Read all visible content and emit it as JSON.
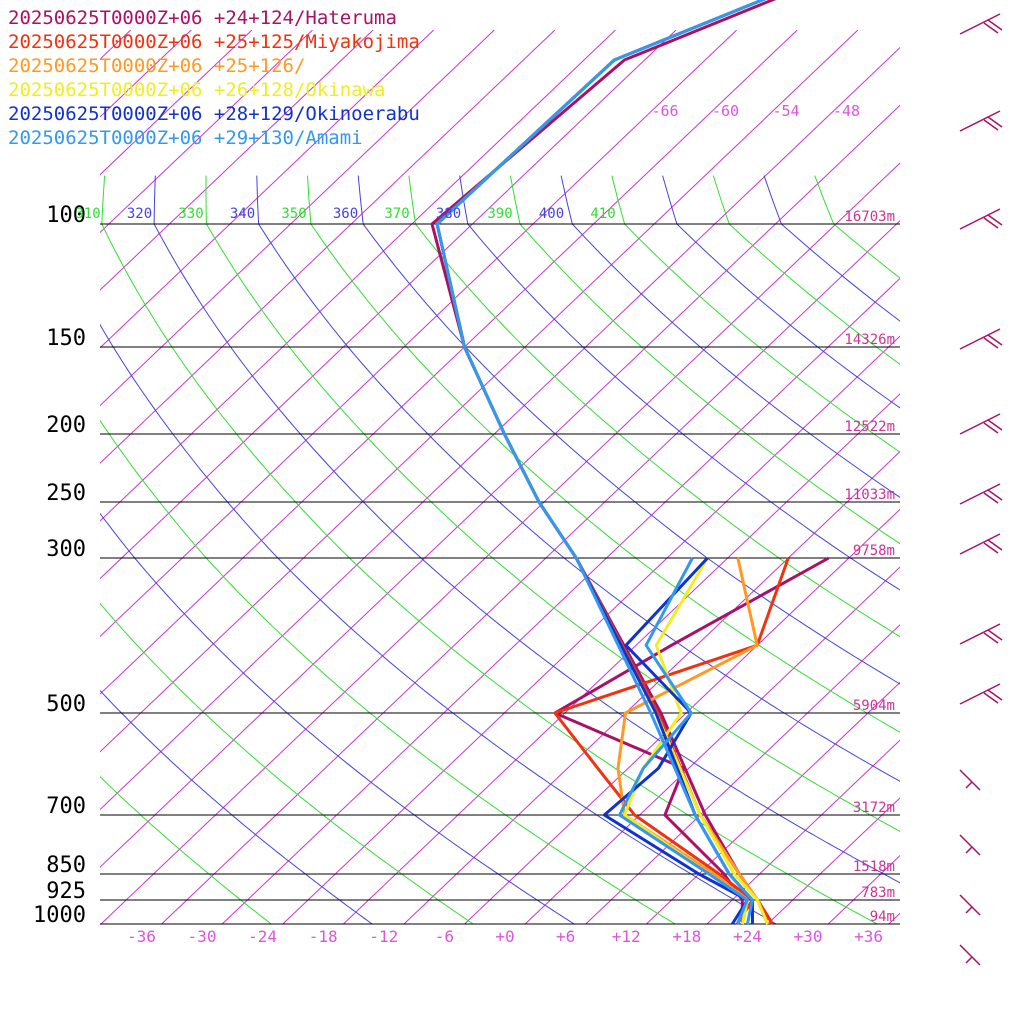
{
  "chart_data": {
    "type": "line",
    "title": "",
    "xlabel": "",
    "ylabel": "",
    "pressure_levels": [
      100,
      150,
      200,
      250,
      300,
      500,
      700,
      850,
      925,
      1000
    ],
    "pressure_labels": [
      "100",
      "150",
      "200",
      "250",
      "300",
      "500",
      "700",
      "850",
      "925",
      "1000"
    ],
    "height_labels": [
      "16703m",
      "14326m",
      "12522m",
      "11033m",
      "9758m",
      "5904m",
      "3172m",
      "1518m",
      "783m",
      "94m"
    ],
    "temperature_ticks": [
      -36,
      -30,
      -24,
      -18,
      -12,
      -6,
      0,
      6,
      12,
      18,
      24,
      30,
      36
    ],
    "temperature_tick_labels": [
      "-36",
      "-30",
      "-24",
      "-18",
      "-12",
      "-6",
      "+0",
      "+6",
      "+12",
      "+18",
      "+24",
      "+30",
      "+36"
    ],
    "upper_isotherm_labels": [
      "-66",
      "-60",
      "-54",
      "-48"
    ],
    "theta_labels": [
      {
        "text": "310",
        "color": "#33dd33"
      },
      {
        "text": "320",
        "color": "#4444dd"
      },
      {
        "text": "330",
        "color": "#33dd33"
      },
      {
        "text": "340",
        "color": "#4444dd"
      },
      {
        "text": "350",
        "color": "#33dd33"
      },
      {
        "text": "360",
        "color": "#4444dd"
      },
      {
        "text": "370",
        "color": "#33dd33"
      },
      {
        "text": "380",
        "color": "#4444dd"
      },
      {
        "text": "390",
        "color": "#33dd33"
      },
      {
        "text": "400",
        "color": "#4444dd"
      },
      {
        "text": "410",
        "color": "#33dd33"
      }
    ],
    "series": [
      {
        "name": "20250625T0000Z+06 +24+124/Hateruma",
        "color": "#aa1166",
        "temperature": [
          [
            1000,
            26.5
          ],
          [
            925,
            22.5
          ],
          [
            850,
            18.0
          ],
          [
            700,
            8.5
          ],
          [
            500,
            -6.5
          ],
          [
            300,
            -31
          ],
          [
            250,
            -40.5
          ],
          [
            200,
            -51
          ],
          [
            150,
            -64
          ],
          [
            100,
            -80
          ],
          [
            70,
            -78
          ],
          [
            50,
            -64
          ]
        ],
        "dewpoint": [
          [
            1000,
            23.5
          ],
          [
            925,
            21.0
          ],
          [
            850,
            16.5
          ],
          [
            700,
            4.5
          ],
          [
            600,
            1.5
          ],
          [
            500,
            -17.0
          ],
          [
            400,
            -12.5
          ],
          [
            300,
            -6.0
          ]
        ]
      },
      {
        "name": "20250625T0000Z+06 +25+125/Miyakojima",
        "color": "#ee3311",
        "temperature": [
          [
            1000,
            26.5
          ],
          [
            925,
            22.5
          ],
          [
            850,
            18.0
          ],
          [
            700,
            8.0
          ],
          [
            500,
            -6.8
          ],
          [
            300,
            -31
          ],
          [
            250,
            -40.5
          ],
          [
            200,
            -51
          ],
          [
            150,
            -64
          ],
          [
            100,
            -79.5
          ],
          [
            70,
            -79
          ],
          [
            50,
            -65
          ]
        ],
        "dewpoint": [
          [
            1000,
            23.0
          ],
          [
            925,
            22.0
          ],
          [
            850,
            16.0
          ],
          [
            700,
            1.5
          ],
          [
            600,
            -7.0
          ],
          [
            500,
            -17.0
          ],
          [
            400,
            -4.0
          ],
          [
            300,
            -10.0
          ]
        ]
      },
      {
        "name": "20250625T0000Z+06 +25+126/",
        "color": "#ff9922",
        "temperature": [
          [
            1000,
            26.0
          ],
          [
            925,
            22.5
          ],
          [
            850,
            18.0
          ],
          [
            700,
            8.0
          ],
          [
            500,
            -7.0
          ],
          [
            300,
            -31
          ],
          [
            250,
            -40.5
          ],
          [
            200,
            -51
          ],
          [
            150,
            -64
          ],
          [
            100,
            -79.5
          ],
          [
            70,
            -79
          ],
          [
            50,
            -65
          ]
        ],
        "dewpoint": [
          [
            1000,
            23.5
          ],
          [
            925,
            21.5
          ],
          [
            850,
            15.5
          ],
          [
            700,
            0.5
          ],
          [
            600,
            -5.0
          ],
          [
            500,
            -10.0
          ],
          [
            400,
            -4.0
          ],
          [
            300,
            -15.0
          ]
        ]
      },
      {
        "name": "20250625T0000Z+06 +26+128/Okinawa",
        "color": "#eeee22",
        "temperature": [
          [
            1000,
            26.0
          ],
          [
            925,
            22.5
          ],
          [
            850,
            17.5
          ],
          [
            700,
            8.0
          ],
          [
            500,
            -7.0
          ],
          [
            300,
            -31
          ],
          [
            250,
            -40.5
          ],
          [
            200,
            -51
          ],
          [
            150,
            -64
          ],
          [
            100,
            -79.5
          ],
          [
            70,
            -79
          ],
          [
            50,
            -65
          ]
        ],
        "dewpoint": [
          [
            1000,
            23.5
          ],
          [
            925,
            21.5
          ],
          [
            850,
            15.0
          ],
          [
            700,
            0.5
          ],
          [
            600,
            -2.5
          ],
          [
            500,
            -4.5
          ],
          [
            400,
            -14.0
          ],
          [
            300,
            -18.0
          ]
        ]
      },
      {
        "name": "20250625T0000Z+06 +28+129/Okinoerabu",
        "color": "#1133cc",
        "temperature": [
          [
            1000,
            24.5
          ],
          [
            925,
            22.0
          ],
          [
            850,
            17.0
          ],
          [
            700,
            7.5
          ],
          [
            500,
            -7.0
          ],
          [
            300,
            -31
          ],
          [
            250,
            -40.5
          ],
          [
            200,
            -51
          ],
          [
            150,
            -64
          ],
          [
            100,
            -79.5
          ],
          [
            70,
            -79
          ],
          [
            50,
            -65
          ]
        ],
        "dewpoint": [
          [
            1000,
            22.5
          ],
          [
            925,
            21.5
          ],
          [
            850,
            14.0
          ],
          [
            700,
            -1.5
          ],
          [
            600,
            -1.0
          ],
          [
            500,
            -3.5
          ],
          [
            400,
            -17.0
          ],
          [
            300,
            -18.0
          ]
        ]
      },
      {
        "name": "20250625T0000Z+06 +29+130/Amami",
        "color": "#3399ee",
        "temperature": [
          [
            1000,
            24.0
          ],
          [
            925,
            22.0
          ],
          [
            850,
            17.0
          ],
          [
            700,
            7.5
          ],
          [
            500,
            -7.5
          ],
          [
            300,
            -31
          ],
          [
            250,
            -40.5
          ],
          [
            200,
            -51
          ],
          [
            150,
            -64
          ],
          [
            100,
            -79.5
          ],
          [
            70,
            -79
          ],
          [
            50,
            -65
          ]
        ],
        "dewpoint": [
          [
            1000,
            23.0
          ],
          [
            925,
            21.5
          ],
          [
            850,
            15.0
          ],
          [
            700,
            0.0
          ],
          [
            600,
            -2.5
          ],
          [
            500,
            -3.5
          ],
          [
            400,
            -15.0
          ],
          [
            300,
            -19.5
          ]
        ]
      }
    ],
    "grid": true,
    "legend_placement": "top-left",
    "colors": {
      "isotherm": "#cc33cc",
      "dry_adiabat_green": "#33dd33",
      "dry_adiabat_blue": "#4444dd",
      "isobar": "#000000",
      "height_label": "#aa3399",
      "wind_barb": "#aa1166"
    },
    "wind_barbs": "present at right edge"
  }
}
